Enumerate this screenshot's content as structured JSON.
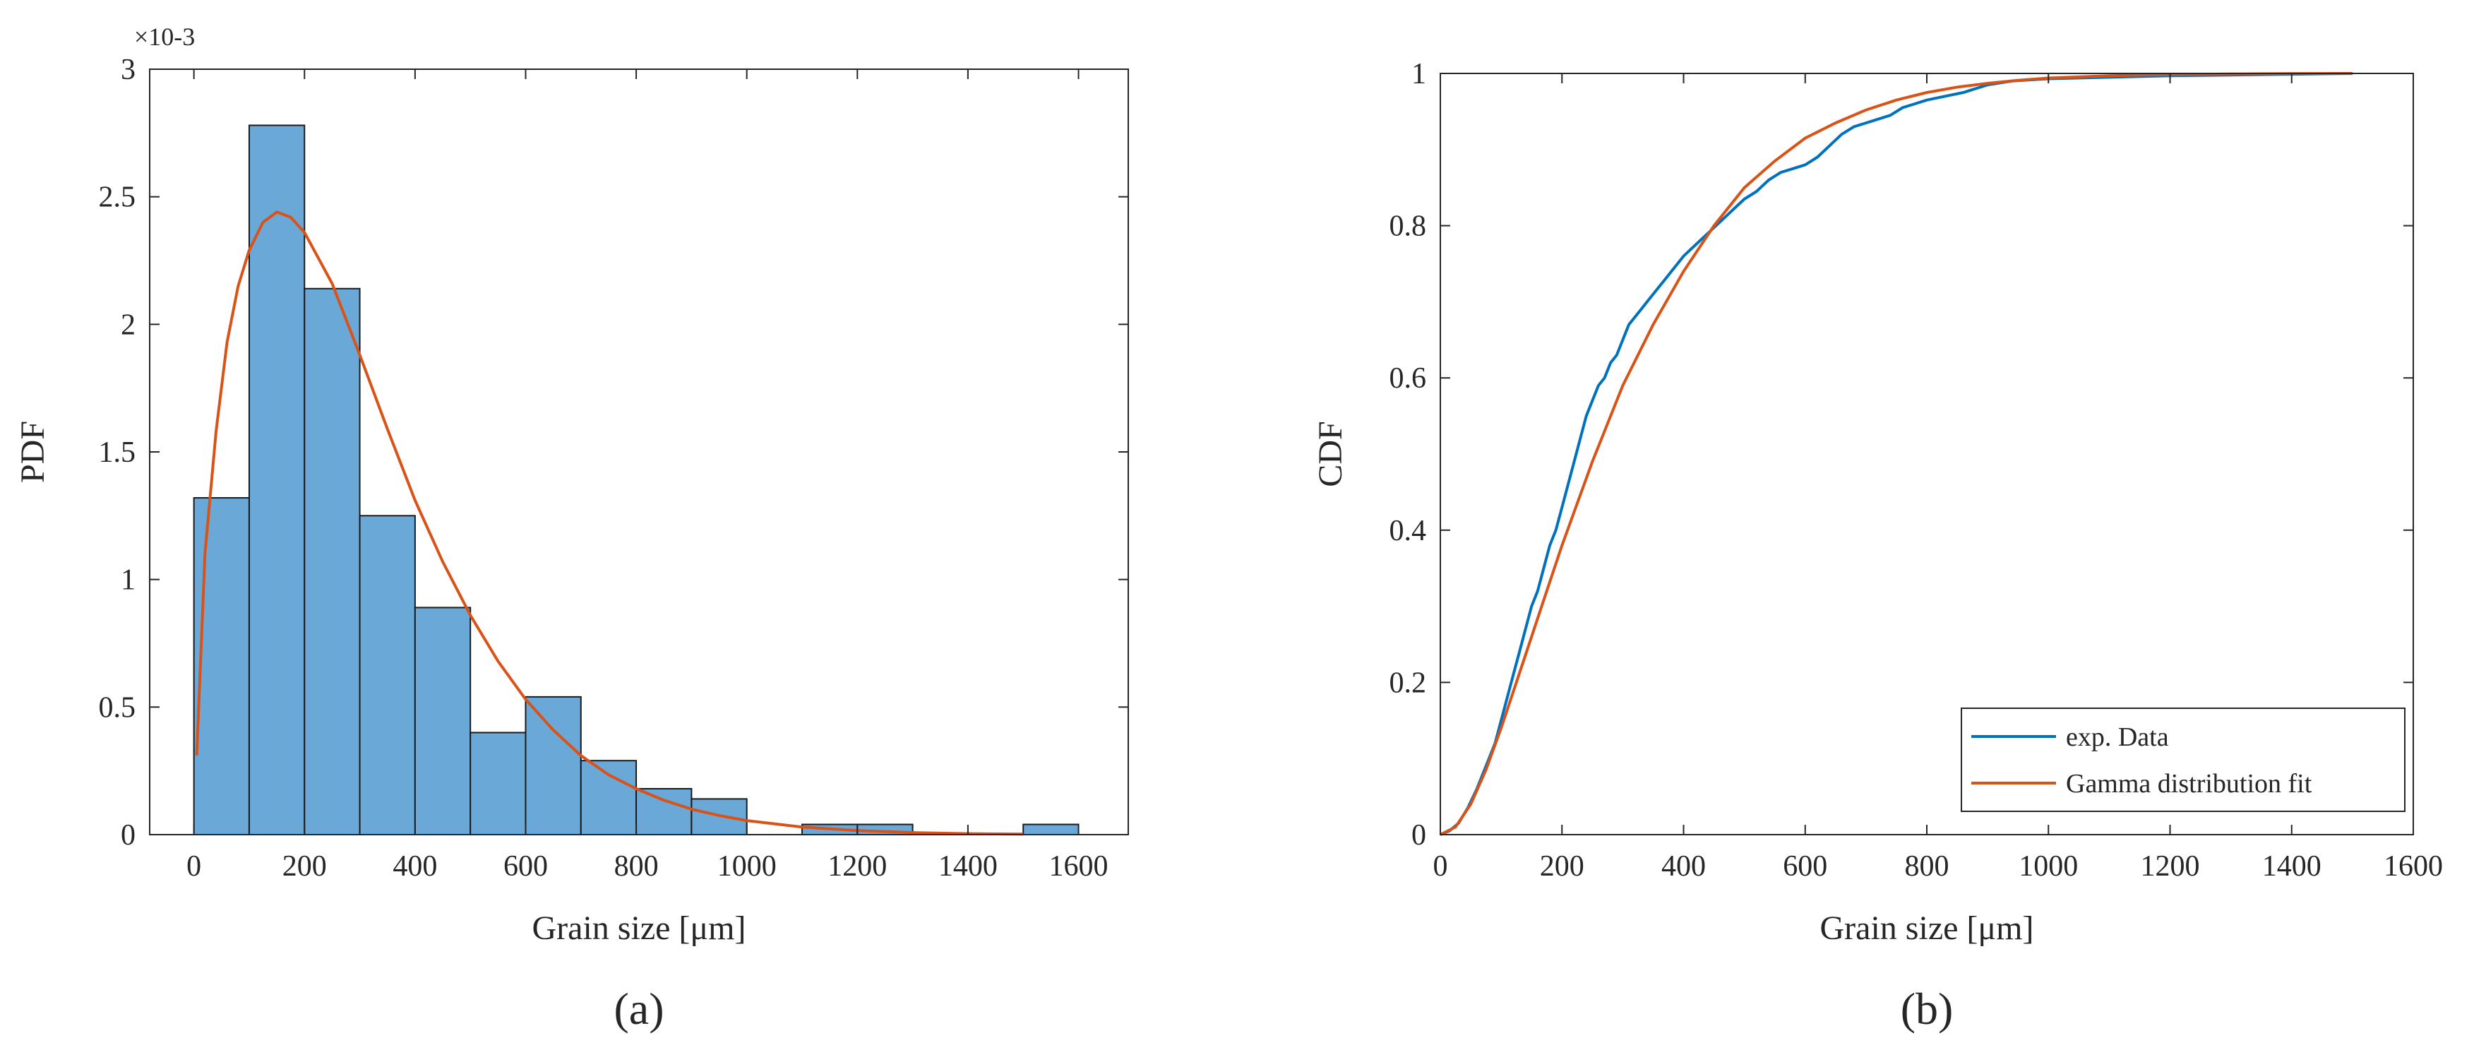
{
  "chart_data": [
    {
      "type": "bar",
      "panel_label": "(a)",
      "xlabel": "Grain size [μm]",
      "ylabel": "PDF",
      "y_exponent_label": "×10-3",
      "xlim": [
        -80,
        1690
      ],
      "ylim": [
        0,
        3
      ],
      "xticks": [
        0,
        200,
        400,
        600,
        800,
        1000,
        1200,
        1400,
        1600
      ],
      "yticks": [
        0,
        0.5,
        1,
        1.5,
        2,
        2.5,
        3
      ],
      "yticklabels": [
        "0",
        "0.5",
        "1",
        "1.5",
        "2",
        "2.5",
        "3"
      ],
      "grid": false,
      "bins": [
        {
          "x0": 0,
          "x1": 100,
          "value": 1.32
        },
        {
          "x0": 100,
          "x1": 200,
          "value": 2.78
        },
        {
          "x0": 200,
          "x1": 300,
          "value": 2.14
        },
        {
          "x0": 300,
          "x1": 400,
          "value": 1.25
        },
        {
          "x0": 400,
          "x1": 500,
          "value": 0.89
        },
        {
          "x0": 500,
          "x1": 600,
          "value": 0.4
        },
        {
          "x0": 600,
          "x1": 700,
          "value": 0.54
        },
        {
          "x0": 700,
          "x1": 800,
          "value": 0.29
        },
        {
          "x0": 800,
          "x1": 900,
          "value": 0.18
        },
        {
          "x0": 900,
          "x1": 1000,
          "value": 0.14
        },
        {
          "x0": 1000,
          "x1": 1100,
          "value": 0
        },
        {
          "x0": 1100,
          "x1": 1200,
          "value": 0.04
        },
        {
          "x0": 1200,
          "x1": 1300,
          "value": 0.04
        },
        {
          "x0": 1300,
          "x1": 1400,
          "value": 0
        },
        {
          "x0": 1400,
          "x1": 1500,
          "value": 0
        },
        {
          "x0": 1500,
          "x1": 1600,
          "value": 0.04
        }
      ],
      "fit_curve": {
        "x": [
          5,
          20,
          40,
          60,
          80,
          100,
          125,
          150,
          175,
          200,
          250,
          300,
          350,
          400,
          450,
          500,
          550,
          600,
          650,
          700,
          750,
          800,
          850,
          900,
          950,
          1000,
          1100,
          1200,
          1300,
          1400,
          1500
        ],
        "y": [
          0.31,
          1.1,
          1.58,
          1.93,
          2.15,
          2.29,
          2.4,
          2.44,
          2.42,
          2.36,
          2.16,
          1.88,
          1.59,
          1.31,
          1.07,
          0.86,
          0.68,
          0.53,
          0.41,
          0.31,
          0.235,
          0.18,
          0.135,
          0.1,
          0.075,
          0.055,
          0.03,
          0.016,
          0.008,
          0.004,
          0.002
        ]
      },
      "colors": {
        "bar_fill": "#6aa8d8",
        "bar_edge": "#1a1a1a",
        "fit": "#d95319"
      }
    },
    {
      "type": "line",
      "panel_label": "(b)",
      "xlabel": "Grain size [μm]",
      "ylabel": "CDF",
      "xlim": [
        0,
        1600
      ],
      "ylim": [
        0,
        1
      ],
      "xticks": [
        0,
        200,
        400,
        600,
        800,
        1000,
        1200,
        1400,
        1600
      ],
      "yticks": [
        0,
        0.2,
        0.4,
        0.6,
        0.8,
        1
      ],
      "yticklabels": [
        "0",
        "0.2",
        "0.4",
        "0.6",
        "0.8",
        "1"
      ],
      "grid": false,
      "legend_position": "bottom-right",
      "series": [
        {
          "name": "exp. Data",
          "color": "#0072bd",
          "x": [
            0,
            15,
            30,
            45,
            60,
            75,
            90,
            100,
            110,
            120,
            130,
            140,
            150,
            160,
            170,
            180,
            190,
            200,
            210,
            220,
            230,
            240,
            250,
            260,
            270,
            280,
            290,
            300,
            310,
            320,
            330,
            340,
            350,
            360,
            370,
            380,
            390,
            400,
            420,
            440,
            460,
            480,
            500,
            520,
            540,
            560,
            580,
            600,
            620,
            640,
            660,
            680,
            700,
            720,
            740,
            760,
            780,
            800,
            830,
            860,
            900,
            940,
            1000,
            1100,
            1200,
            1300,
            1400,
            1500
          ],
          "y": [
            0,
            0.005,
            0.015,
            0.035,
            0.06,
            0.09,
            0.12,
            0.15,
            0.18,
            0.21,
            0.24,
            0.27,
            0.3,
            0.32,
            0.35,
            0.38,
            0.4,
            0.43,
            0.46,
            0.49,
            0.52,
            0.55,
            0.57,
            0.59,
            0.6,
            0.62,
            0.63,
            0.65,
            0.67,
            0.68,
            0.69,
            0.7,
            0.71,
            0.72,
            0.73,
            0.74,
            0.75,
            0.76,
            0.775,
            0.79,
            0.805,
            0.82,
            0.835,
            0.845,
            0.86,
            0.87,
            0.875,
            0.88,
            0.89,
            0.905,
            0.92,
            0.93,
            0.935,
            0.94,
            0.945,
            0.955,
            0.96,
            0.965,
            0.97,
            0.975,
            0.985,
            0.99,
            0.993,
            0.995,
            0.997,
            0.998,
            0.999,
            1.0
          ]
        },
        {
          "name": "Gamma distribution fit",
          "color": "#d95319",
          "x": [
            0,
            25,
            50,
            75,
            100,
            125,
            150,
            175,
            200,
            250,
            300,
            350,
            400,
            450,
            500,
            550,
            600,
            650,
            700,
            750,
            800,
            850,
            900,
            950,
            1000,
            1100,
            1200,
            1300,
            1400,
            1500
          ],
          "y": [
            0,
            0.01,
            0.04,
            0.085,
            0.14,
            0.2,
            0.26,
            0.32,
            0.38,
            0.49,
            0.59,
            0.67,
            0.74,
            0.8,
            0.85,
            0.885,
            0.915,
            0.935,
            0.952,
            0.965,
            0.975,
            0.982,
            0.987,
            0.991,
            0.994,
            0.997,
            0.9985,
            0.9993,
            0.9997,
            0.9999
          ]
        }
      ]
    }
  ]
}
